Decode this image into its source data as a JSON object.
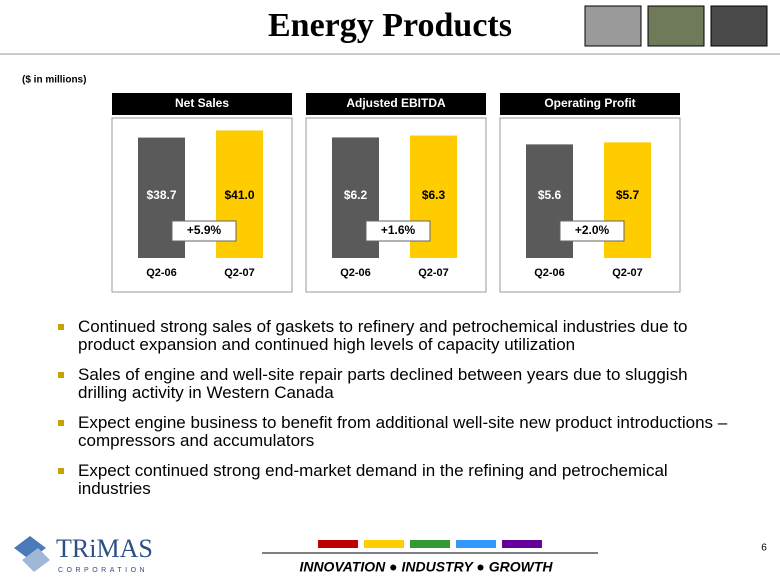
{
  "title": "Energy Products",
  "unit_note": "($ in millions)",
  "chart_data": [
    {
      "type": "bar",
      "title": "Net Sales",
      "categories": [
        "Q2-06",
        "Q2-07"
      ],
      "values": [
        38.7,
        41.0
      ],
      "value_labels": [
        "$38.7",
        "$41.0"
      ],
      "annotation": "+5.9%",
      "colors": [
        "#5a5a5a",
        "#ffcc00"
      ],
      "ylim": [
        0,
        45
      ]
    },
    {
      "type": "bar",
      "title": "Adjusted EBITDA",
      "categories": [
        "Q2-06",
        "Q2-07"
      ],
      "values": [
        6.2,
        6.3
      ],
      "value_labels": [
        "$6.2",
        "$6.3"
      ],
      "annotation": "+1.6%",
      "colors": [
        "#5a5a5a",
        "#ffcc00"
      ],
      "ylim": [
        0,
        7.2
      ]
    },
    {
      "type": "bar",
      "title": "Operating Profit",
      "categories": [
        "Q2-06",
        "Q2-07"
      ],
      "values": [
        5.6,
        5.7
      ],
      "value_labels": [
        "$5.6",
        "$5.7"
      ],
      "annotation": "+2.0%",
      "colors": [
        "#5a5a5a",
        "#ffcc00"
      ],
      "ylim": [
        0,
        6.9
      ]
    }
  ],
  "bullets": [
    "Continued strong sales of gaskets to refinery and petrochemical industries due to product expansion and continued high levels of capacity utilization",
    "Sales of engine and well-site repair parts declined between years due to sluggish drilling activity in Western Canada",
    "Expect engine business to benefit from additional well-site new product introductions – compressors and accumulators",
    "Expect continued strong end-market demand in the refining and petrochemical industries"
  ],
  "footer": {
    "logo_name": "TRiMAS",
    "logo_sub": "CORPORATION",
    "tagline": "INNOVATION ● INDUSTRY ● GROWTH",
    "page_number": "6"
  }
}
